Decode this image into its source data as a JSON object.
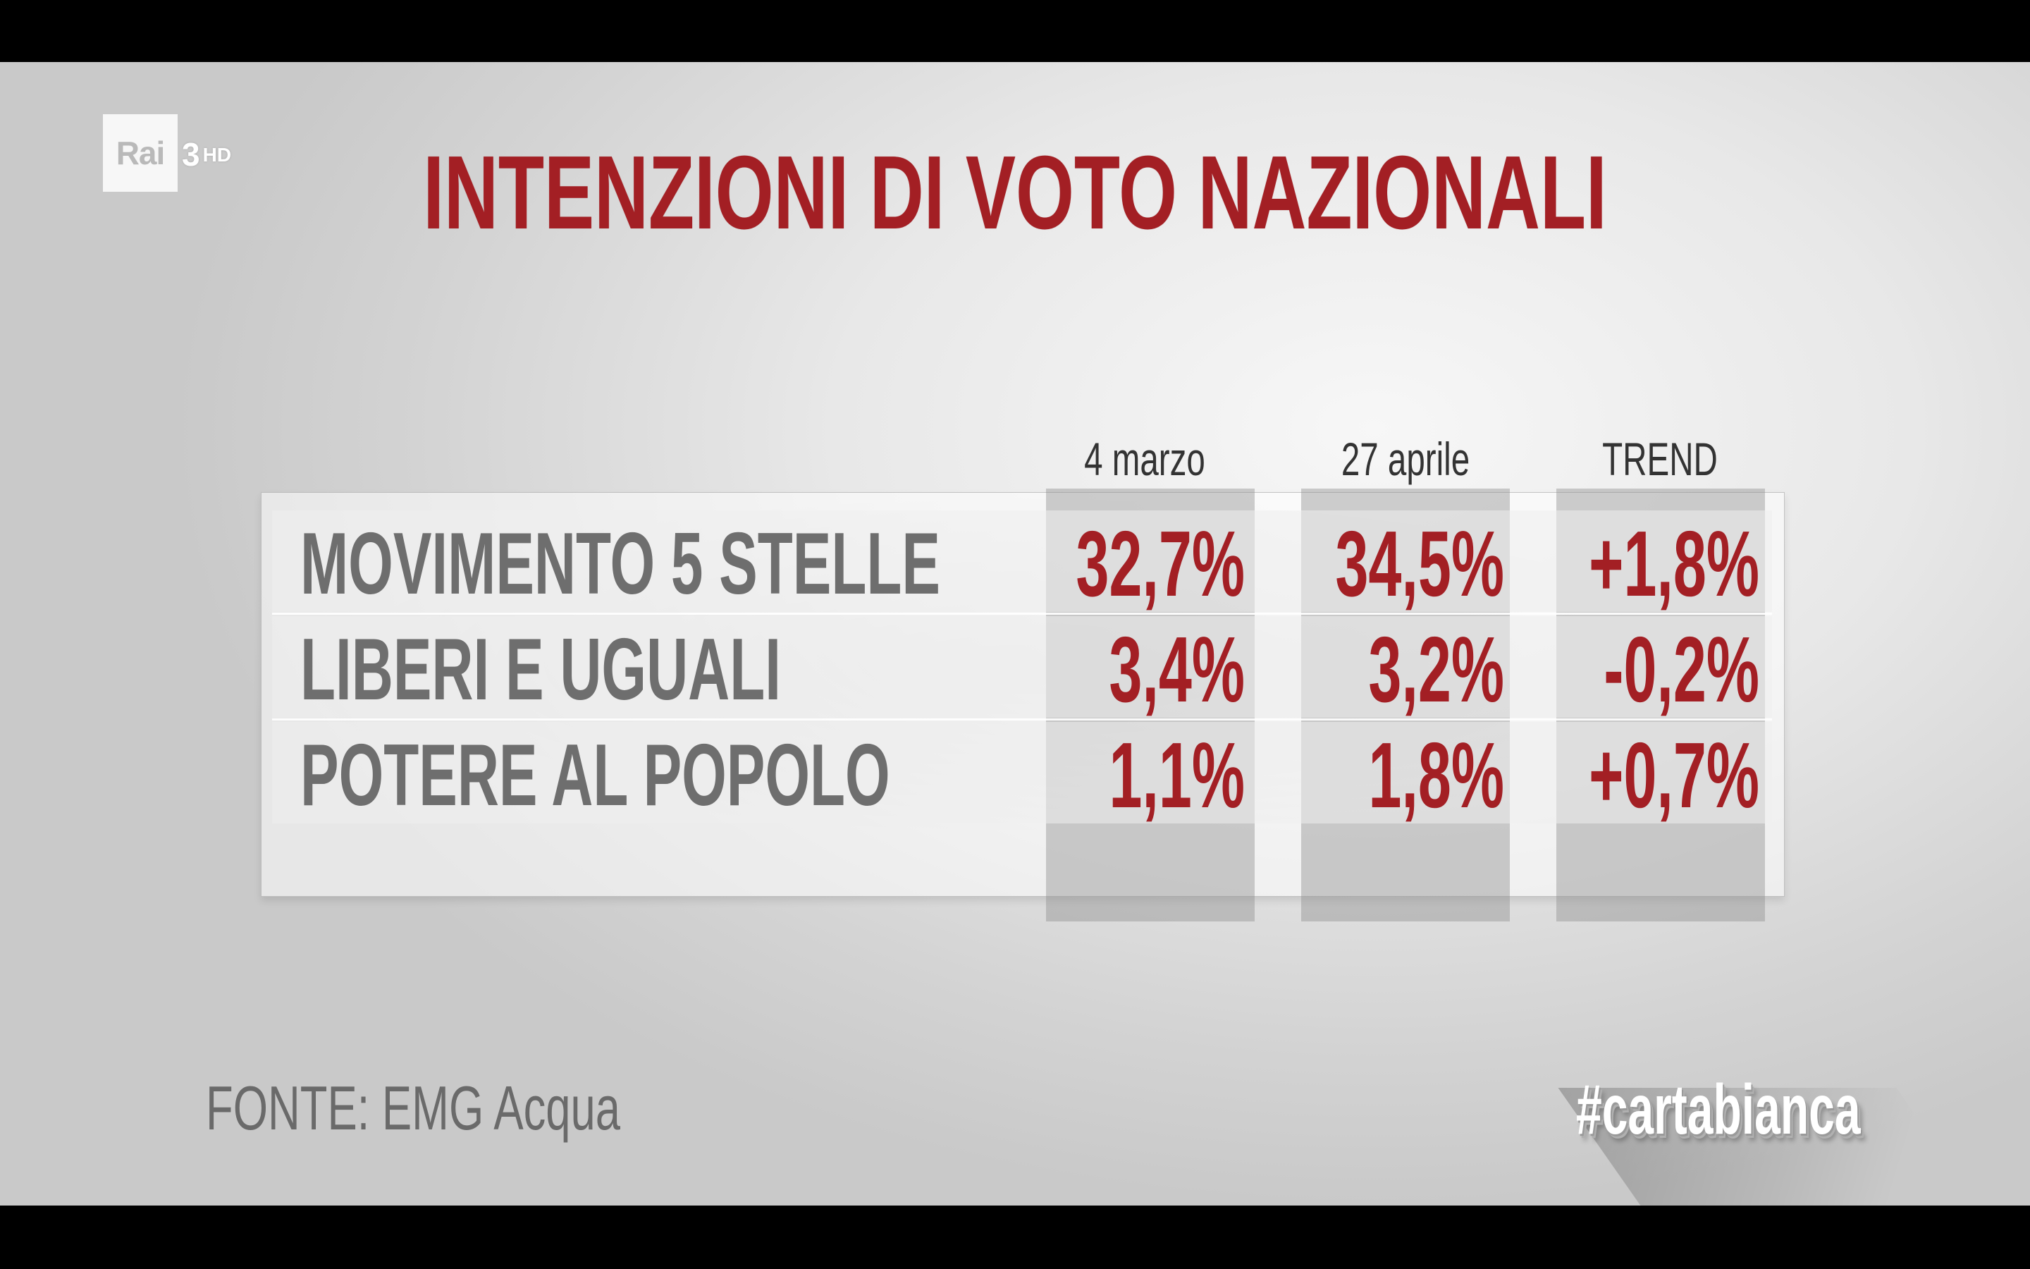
{
  "channel_logo": {
    "brand": "Rai",
    "number": "3",
    "suffix": "HD"
  },
  "chart_data": {
    "type": "table",
    "title": "INTENZIONI DI VOTO NAZIONALI",
    "columns": [
      "4 marzo",
      "27 aprile",
      "TREND"
    ],
    "rows": [
      {
        "label": "MOVIMENTO 5 STELLE",
        "values": [
          "32,7%",
          "34,5%",
          "+1,8%"
        ]
      },
      {
        "label": "LIBERI E UGUALI",
        "values": [
          "3,4%",
          "3,2%",
          "-0,2%"
        ]
      },
      {
        "label": "POTERE AL POPOLO",
        "values": [
          "1,1%",
          "1,8%",
          "+0,7%"
        ]
      }
    ],
    "numeric_values": {
      "MOVIMENTO 5 STELLE": [
        32.7,
        34.5,
        1.8
      ],
      "LIBERI E UGUALI": [
        3.4,
        3.2,
        -0.2
      ],
      "POTERE AL POPOLO": [
        1.1,
        1.8,
        0.7
      ]
    },
    "source": "FONTE: EMG Acqua"
  },
  "hashtag": "#cartabianca",
  "colors": {
    "title": "#a31f24",
    "values": "#a31f24",
    "labels": "#6e6e6e",
    "background": "#e8e8e8"
  }
}
